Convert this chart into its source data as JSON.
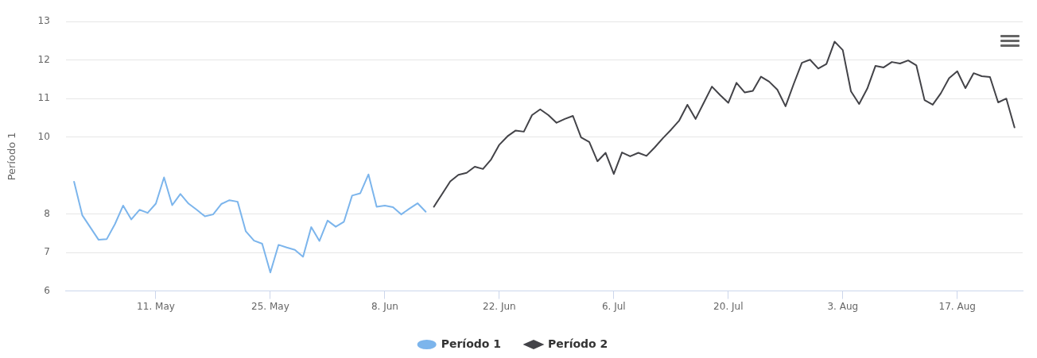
{
  "chart_data": {
    "type": "line",
    "ylabel": "Período 1",
    "legend": "bottom",
    "grid": "y",
    "marker": "none",
    "line_style": "solid",
    "ylim": [
      6,
      13
    ],
    "yticks": [
      6,
      7,
      8,
      10,
      11,
      12,
      13
    ],
    "xlim": [
      "--04-30",
      "--08-25"
    ],
    "xticks": [
      {
        "value": "--05-11",
        "label": "11. May"
      },
      {
        "value": "--05-25",
        "label": "25. May"
      },
      {
        "value": "--06-08",
        "label": "8. Jun"
      },
      {
        "value": "--06-22",
        "label": "22. Jun"
      },
      {
        "value": "--07-06",
        "label": "6. Jul"
      },
      {
        "value": "--07-20",
        "label": "20. Jul"
      },
      {
        "value": "--08-03",
        "label": "3. Aug"
      },
      {
        "value": "--08-17",
        "label": "17. Aug"
      }
    ],
    "series": [
      {
        "name": "Período 1",
        "color": "#7cb5ec",
        "x": [
          "--05-01",
          "--05-02",
          "--05-03",
          "--05-04",
          "--05-05",
          "--05-06",
          "--05-07",
          "--05-08",
          "--05-09",
          "--05-10",
          "--05-11",
          "--05-12",
          "--05-13",
          "--05-14",
          "--05-15",
          "--05-16",
          "--05-17",
          "--05-18",
          "--05-19",
          "--05-20",
          "--05-21",
          "--05-22",
          "--05-23",
          "--05-24",
          "--05-25",
          "--05-26",
          "--05-27",
          "--05-28",
          "--05-29",
          "--05-30",
          "--05-31",
          "--06-01",
          "--06-02",
          "--06-03",
          "--06-04",
          "--06-05",
          "--06-06",
          "--06-07",
          "--06-08",
          "--06-09",
          "--06-10",
          "--06-11",
          "--06-12",
          "--06-13"
        ],
        "values": [
          8.84,
          7.97,
          7.65,
          7.33,
          7.35,
          7.74,
          8.22,
          7.86,
          8.11,
          8.03,
          8.27,
          8.95,
          8.23,
          8.52,
          8.27,
          8.11,
          7.94,
          7.99,
          8.26,
          8.36,
          8.32,
          7.55,
          7.31,
          7.23,
          6.48,
          7.2,
          7.13,
          7.07,
          6.89,
          7.66,
          7.3,
          7.83,
          7.67,
          7.8,
          8.48,
          8.54,
          9.03,
          8.19,
          8.22,
          8.18,
          7.99,
          8.14,
          8.28,
          8.06
        ]
      },
      {
        "name": "Período 2",
        "color": "#434348",
        "x": [
          "--06-14",
          "--06-15",
          "--06-16",
          "--06-17",
          "--06-18",
          "--06-19",
          "--06-20",
          "--06-21",
          "--06-22",
          "--06-23",
          "--06-24",
          "--06-25",
          "--06-26",
          "--06-27",
          "--06-28",
          "--06-29",
          "--06-30",
          "--07-01",
          "--07-02",
          "--07-03",
          "--07-04",
          "--07-05",
          "--07-06",
          "--07-07",
          "--07-08",
          "--07-09",
          "--07-10",
          "--07-11",
          "--07-12",
          "--07-13",
          "--07-14",
          "--07-15",
          "--07-16",
          "--07-17",
          "--07-18",
          "--07-19",
          "--07-20",
          "--07-21",
          "--07-22",
          "--07-23",
          "--07-24",
          "--07-25",
          "--07-26",
          "--07-27",
          "--07-28",
          "--07-29",
          "--07-30",
          "--07-31",
          "--08-01",
          "--08-02",
          "--08-03",
          "--08-04",
          "--08-05",
          "--08-06",
          "--08-07",
          "--08-08",
          "--08-09",
          "--08-10",
          "--08-11",
          "--08-12",
          "--08-13",
          "--08-14",
          "--08-15",
          "--08-16",
          "--08-17",
          "--08-18",
          "--08-19",
          "--08-20",
          "--08-21",
          "--08-22",
          "--08-23",
          "--08-24"
        ],
        "values": [
          8.19,
          8.52,
          8.85,
          9.02,
          9.07,
          9.23,
          9.17,
          9.42,
          9.8,
          10.02,
          10.17,
          10.14,
          10.57,
          10.72,
          10.57,
          10.37,
          10.47,
          10.55,
          9.99,
          9.87,
          9.37,
          9.59,
          9.04,
          9.6,
          9.5,
          9.59,
          9.51,
          9.73,
          9.97,
          10.19,
          10.43,
          10.84,
          10.47,
          10.89,
          11.31,
          11.09,
          10.89,
          11.41,
          11.16,
          11.2,
          11.57,
          11.44,
          11.23,
          10.8,
          11.38,
          11.93,
          12.01,
          11.78,
          11.9,
          12.48,
          12.26,
          11.19,
          10.86,
          11.26,
          11.85,
          11.81,
          11.95,
          11.91,
          11.99,
          11.86,
          10.96,
          10.84,
          11.14,
          11.53,
          11.71,
          11.27,
          11.66,
          11.58,
          11.56,
          10.9,
          11,
          10.25
        ]
      }
    ]
  }
}
